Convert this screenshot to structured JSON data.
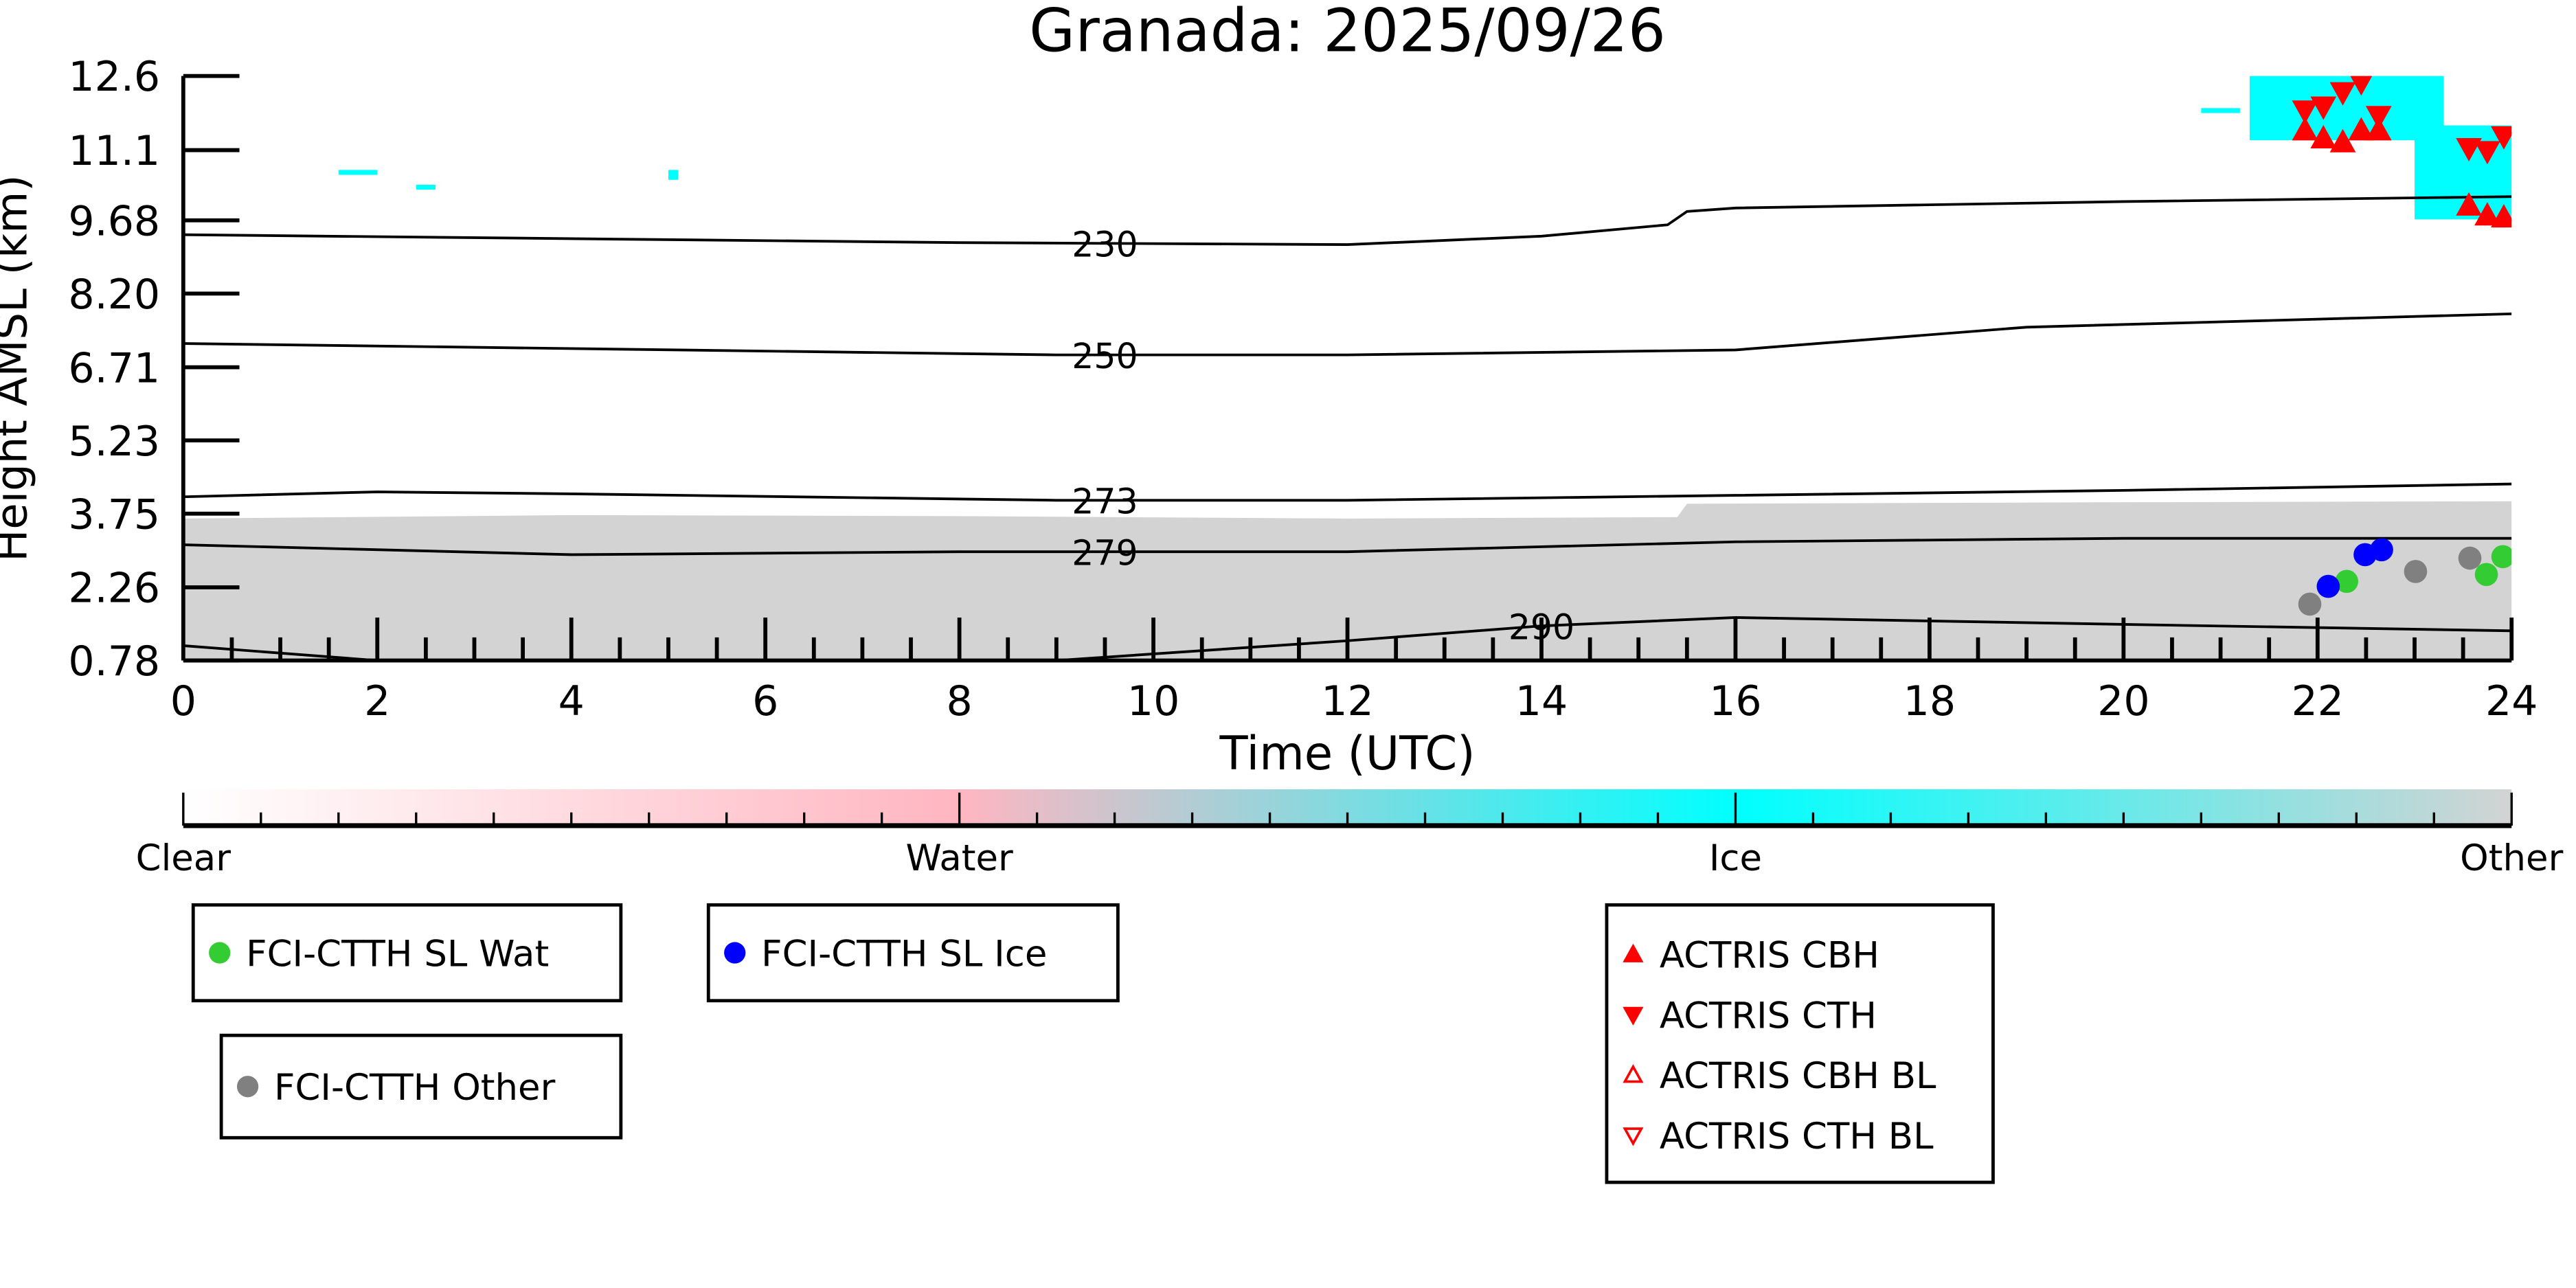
{
  "chart_data": {
    "type": "scatter",
    "title": "Granada: 2025/09/26",
    "xlabel": "Time (UTC)",
    "ylabel": "Height AMSL (km)",
    "xlim": [
      0,
      24
    ],
    "ylim": [
      0.78,
      12.6
    ],
    "xticks": [
      "0",
      "2",
      "4",
      "6",
      "8",
      "10",
      "12",
      "14",
      "16",
      "18",
      "20",
      "22",
      "24"
    ],
    "yticks": [
      "0.78",
      "2.26",
      "3.75",
      "5.23",
      "6.71",
      "8.20",
      "9.68",
      "11.1",
      "12.6"
    ],
    "grid": false,
    "colorbar": {
      "labels": [
        "Clear",
        "Water",
        "Ice",
        "Other"
      ],
      "colors": [
        "#ffffff",
        "#ffb6c1",
        "#00ffff",
        "#d3d3d3"
      ]
    },
    "other_region": {
      "color": "#d3d3d3",
      "x": [
        0,
        4,
        8,
        12,
        15.4,
        15.5,
        20,
        24
      ],
      "top": [
        3.65,
        3.72,
        3.7,
        3.65,
        3.68,
        3.95,
        3.98,
        4.0
      ]
    },
    "ice_color": "#00ffff",
    "ice_patches": [
      {
        "x": [
          1.6,
          2.0
        ],
        "h": [
          10.6,
          10.7
        ]
      },
      {
        "x": [
          2.4,
          2.6
        ],
        "h": [
          10.3,
          10.4
        ]
      },
      {
        "x": [
          5.0,
          5.1
        ],
        "h": [
          10.5,
          10.7
        ]
      },
      {
        "x": [
          20.8,
          21.2
        ],
        "h": [
          11.85,
          11.95
        ]
      },
      {
        "x": [
          21.3,
          23.3
        ],
        "h": [
          11.3,
          12.6
        ]
      },
      {
        "x": [
          23.0,
          24.0
        ],
        "h": [
          9.7,
          11.6
        ]
      }
    ],
    "contours": [
      {
        "label": "230",
        "label_x": 9.5,
        "x": [
          0,
          8,
          12,
          14,
          15.3,
          15.5,
          16,
          20,
          24
        ],
        "h": [
          9.39,
          9.23,
          9.19,
          9.36,
          9.59,
          9.86,
          9.93,
          10.06,
          10.16
        ]
      },
      {
        "label": "250",
        "label_x": 9.5,
        "x": [
          0,
          9,
          12,
          16,
          19,
          24
        ],
        "h": [
          7.19,
          6.96,
          6.96,
          7.06,
          7.52,
          7.79
        ]
      },
      {
        "label": "273",
        "label_x": 9.5,
        "x": [
          0,
          2,
          4,
          9,
          12,
          16,
          20,
          24
        ],
        "h": [
          4.09,
          4.19,
          4.15,
          4.02,
          4.02,
          4.12,
          4.22,
          4.35
        ]
      },
      {
        "label": "279",
        "label_x": 9.5,
        "x": [
          0,
          4,
          8,
          12,
          16,
          20,
          24
        ],
        "h": [
          3.12,
          2.92,
          2.98,
          2.98,
          3.18,
          3.25,
          3.25
        ]
      },
      {
        "label": "290",
        "label_x": 14.0,
        "x": [
          0,
          2,
          9,
          12,
          14,
          16,
          20,
          24
        ],
        "h": [
          1.08,
          0.78,
          0.78,
          1.18,
          1.48,
          1.65,
          1.51,
          1.38
        ]
      }
    ],
    "series": [
      {
        "name": "FCI-CTTH SL Wat",
        "marker": "circle",
        "color": "#33cc33",
        "x": [
          22.3,
          23.74,
          23.91
        ],
        "y": [
          2.38,
          2.52,
          2.88
        ]
      },
      {
        "name": "FCI-CTTH SL Ice",
        "marker": "circle",
        "color": "#0000ff",
        "x": [
          22.11,
          22.49,
          22.66
        ],
        "y": [
          2.28,
          2.92,
          3.02
        ]
      },
      {
        "name": "FCI-CTTH Other",
        "marker": "circle",
        "color": "#808080",
        "x": [
          21.92,
          23.01,
          23.57
        ],
        "y": [
          1.92,
          2.58,
          2.85
        ]
      },
      {
        "name": "ACTRIS CBH",
        "marker": "triangle-up",
        "color": "#ff0000",
        "x": [
          21.87,
          22.06,
          22.26,
          22.45,
          22.63,
          23.56,
          23.75,
          23.92
        ],
        "y": [
          11.5,
          11.34,
          11.26,
          11.5,
          11.5,
          9.98,
          9.78,
          9.74
        ]
      },
      {
        "name": "ACTRIS CTH",
        "marker": "triangle-down",
        "color": "#ff0000",
        "x": [
          21.87,
          22.06,
          22.26,
          22.45,
          22.63,
          23.56,
          23.75,
          23.92
        ],
        "y": [
          11.9,
          11.98,
          12.27,
          12.47,
          11.79,
          11.14,
          11.08,
          11.38
        ]
      },
      {
        "name": "ACTRIS CBH BL",
        "marker": "triangle-up-open",
        "color": "#ff0000",
        "x": [],
        "y": []
      },
      {
        "name": "ACTRIS CTH BL",
        "marker": "triangle-down-open",
        "color": "#ff0000",
        "x": [],
        "y": []
      }
    ]
  }
}
